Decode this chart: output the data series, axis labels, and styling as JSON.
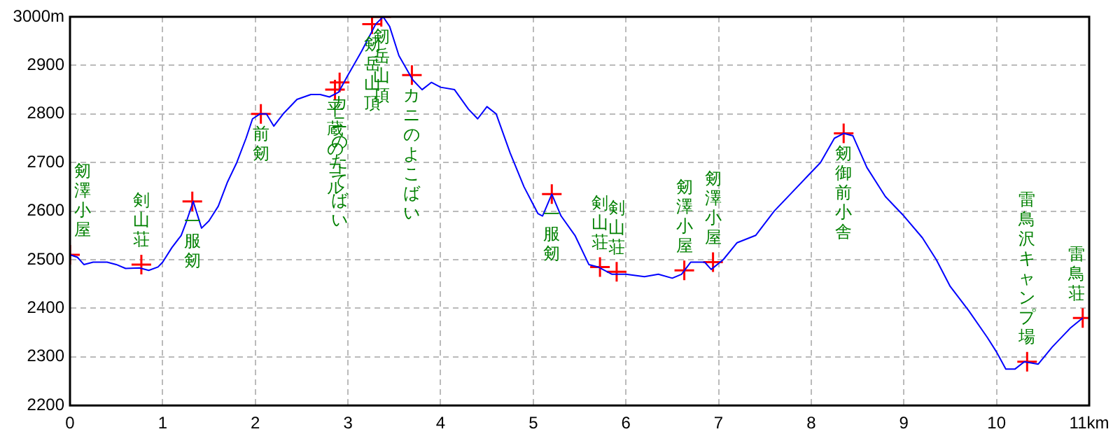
{
  "chart_data": {
    "type": "line",
    "xlim": [
      0,
      11
    ],
    "xticks": [
      0,
      1,
      2,
      3,
      4,
      5,
      6,
      7,
      8,
      9,
      10,
      {
        "value": 11,
        "label": "11km"
      }
    ],
    "ylim": [
      2200,
      3000
    ],
    "yticks": [
      2200,
      2300,
      2400,
      2500,
      2600,
      2700,
      2800,
      2900,
      {
        "value": 3000,
        "label": "3000m"
      }
    ],
    "grid": true,
    "legend": false,
    "series": [
      {
        "color": "#0000ff",
        "marker": "none",
        "line_style": "solid",
        "x": [
          0,
          0.08,
          0.15,
          0.25,
          0.4,
          0.5,
          0.6,
          0.75,
          0.85,
          0.95,
          1.0,
          1.1,
          1.2,
          1.25,
          1.33,
          1.42,
          1.5,
          1.6,
          1.7,
          1.8,
          1.9,
          1.97,
          2.05,
          2.12,
          2.2,
          2.3,
          2.45,
          2.6,
          2.7,
          2.8,
          2.9,
          3.0,
          3.15,
          3.3,
          3.38,
          3.45,
          3.55,
          3.7,
          3.8,
          3.9,
          4.0,
          4.15,
          4.3,
          4.4,
          4.5,
          4.6,
          4.75,
          4.9,
          5.05,
          5.1,
          5.2,
          5.3,
          5.45,
          5.6,
          5.7,
          5.85,
          6.0,
          6.2,
          6.35,
          6.5,
          6.6,
          6.7,
          6.85,
          6.92,
          7.05,
          7.2,
          7.4,
          7.6,
          7.8,
          7.95,
          8.1,
          8.25,
          8.35,
          8.45,
          8.6,
          8.8,
          9.0,
          9.2,
          9.35,
          9.5,
          9.7,
          9.9,
          10.0,
          10.1,
          10.2,
          10.3,
          10.45,
          10.6,
          10.8,
          10.93
        ],
        "values": [
          2510,
          2505,
          2490,
          2495,
          2495,
          2490,
          2482,
          2483,
          2478,
          2485,
          2495,
          2525,
          2550,
          2575,
          2620,
          2565,
          2580,
          2610,
          2660,
          2700,
          2750,
          2790,
          2800,
          2800,
          2775,
          2800,
          2830,
          2840,
          2840,
          2835,
          2845,
          2880,
          2930,
          2985,
          3000,
          2980,
          2920,
          2870,
          2850,
          2865,
          2855,
          2850,
          2810,
          2790,
          2815,
          2800,
          2720,
          2650,
          2595,
          2590,
          2635,
          2590,
          2550,
          2490,
          2485,
          2470,
          2470,
          2465,
          2470,
          2462,
          2470,
          2495,
          2495,
          2480,
          2500,
          2535,
          2550,
          2600,
          2640,
          2670,
          2700,
          2750,
          2760,
          2755,
          2690,
          2630,
          2590,
          2545,
          2500,
          2445,
          2395,
          2340,
          2310,
          2275,
          2275,
          2290,
          2285,
          2320,
          2360,
          2380
        ]
      },
      {
        "type": "scatter",
        "color": "#ff0000",
        "marker": "cross",
        "x": [
          0,
          0.77,
          1.32,
          2.06,
          2.86,
          2.91,
          3.26,
          3.36,
          3.69,
          5.2,
          5.72,
          5.9,
          6.63,
          6.94,
          8.35,
          10.33,
          10.93
        ],
        "values": [
          2510,
          2490,
          2620,
          2800,
          2850,
          2865,
          2985,
          3000,
          2880,
          2635,
          2485,
          2475,
          2478,
          2495,
          2760,
          2290,
          2380
        ]
      }
    ],
    "annotations": [
      {
        "text": "剱澤小屋",
        "x": 0,
        "y": 2510
      },
      {
        "text": "剣山荘",
        "x": 0.77,
        "y": 2490
      },
      {
        "text": "一服剱",
        "x": 1.32,
        "y": 2620
      },
      {
        "text": "前剱",
        "x": 2.06,
        "y": 2800
      },
      {
        "text": "平蔵のコル",
        "x": 2.86,
        "y": 2850
      },
      {
        "text": "カニのたてばい",
        "x": 2.91,
        "y": 2865
      },
      {
        "text": "剱岳山頂",
        "x": 3.26,
        "y": 2985
      },
      {
        "text": "剱岳山頂",
        "x": 3.36,
        "y": 3000
      },
      {
        "text": "カニのよこばい",
        "x": 3.69,
        "y": 2880
      },
      {
        "text": "一服剱",
        "x": 5.2,
        "y": 2635
      },
      {
        "text": "剣山荘",
        "x": 5.72,
        "y": 2485
      },
      {
        "text": "剣山荘",
        "x": 5.9,
        "y": 2475
      },
      {
        "text": "剱澤小屋",
        "x": 6.63,
        "y": 2478
      },
      {
        "text": "剱澤小屋",
        "x": 6.94,
        "y": 2495
      },
      {
        "text": "剱御前小舎",
        "x": 8.35,
        "y": 2760
      },
      {
        "text": "雷鳥沢キャンプ場",
        "x": 10.33,
        "y": 2290
      },
      {
        "text": "雷鳥荘",
        "x": 10.93,
        "y": 2380
      }
    ]
  }
}
